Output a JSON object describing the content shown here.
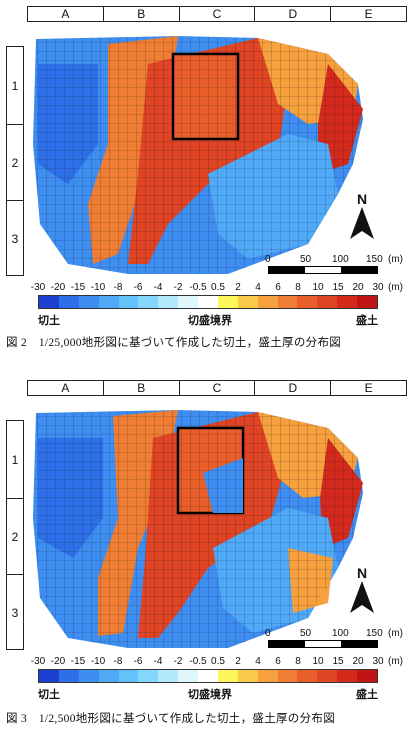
{
  "columns": [
    "A",
    "B",
    "C",
    "D",
    "E"
  ],
  "rows": [
    "1",
    "2",
    "3"
  ],
  "north_label": "N",
  "scale": {
    "ticks": [
      "0",
      "50",
      "100",
      "150"
    ],
    "unit": "(m)"
  },
  "legend": {
    "ticks": [
      "-30",
      "-20",
      "-15",
      "-10",
      "-8",
      "-6",
      "-4",
      "-2",
      "-0.5",
      "0.5",
      "2",
      "4",
      "6",
      "8",
      "10",
      "15",
      "20",
      "30"
    ],
    "unit": "(m)",
    "colors": [
      "#1a3fd1",
      "#2d6fe8",
      "#3e8ef2",
      "#4fa9f7",
      "#63c2f9",
      "#86d6fb",
      "#b4e8fc",
      "#dff6fd",
      "#ffffff",
      "#fbf65a",
      "#f9c94a",
      "#f6a13e",
      "#ef7d33",
      "#e85f2a",
      "#df4424",
      "#d32a1d",
      "#c01417"
    ],
    "left_label": "切土",
    "mid_label": "切盛境界",
    "right_label": "盛土"
  },
  "captions": {
    "fig2": "図 2　1/25,000地形図に基づいて作成した切土，盛土厚の分布図",
    "fig3": "図 3　1/2,500地形図に基づいて作成した切土，盛土厚の分布図"
  }
}
